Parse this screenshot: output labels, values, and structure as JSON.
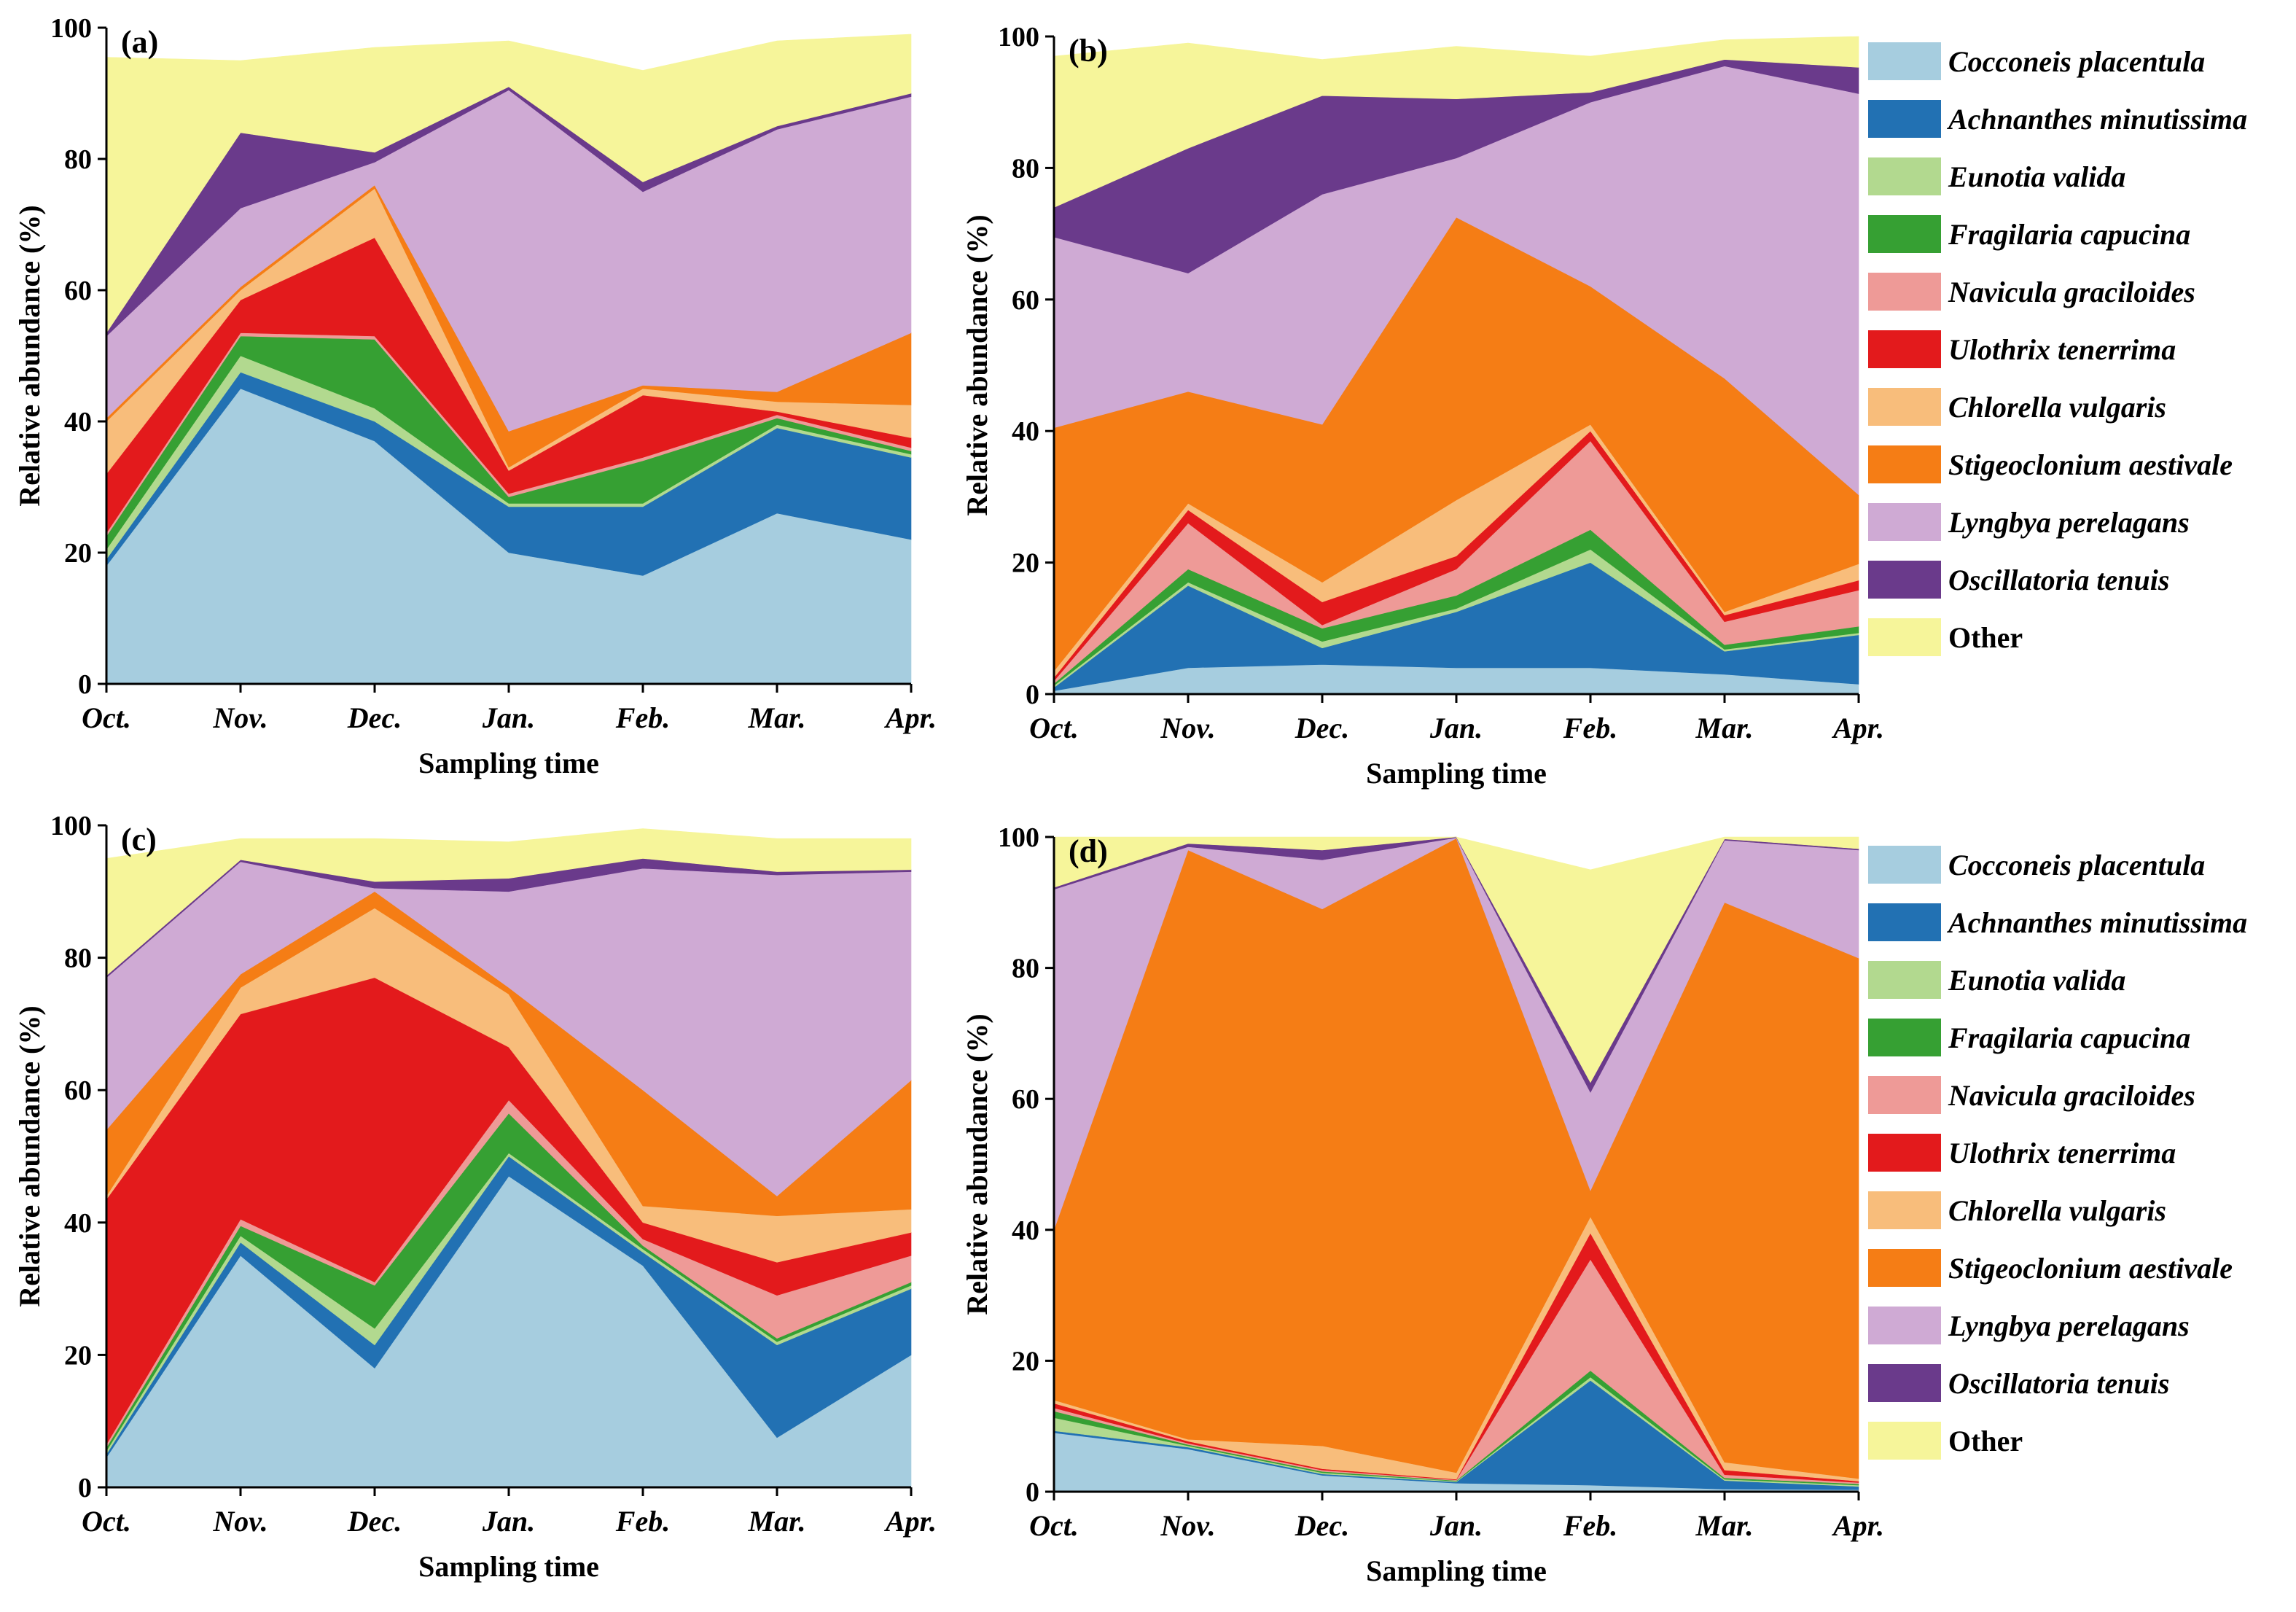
{
  "figure": {
    "background": "#ffffff"
  },
  "chart_data": [
    {
      "type": "area",
      "stacked": true,
      "panel_label": "(a)",
      "xlabel": "Sampling time",
      "ylabel": "Relative abundance (%)",
      "ylim": [
        0,
        100
      ],
      "yticks": [
        0,
        20,
        40,
        60,
        80,
        100
      ],
      "categories": [
        "Oct.",
        "Nov.",
        "Dec.",
        "Jan.",
        "Feb.",
        "Mar.",
        "Apr."
      ],
      "legend": false,
      "series": [
        {
          "name": "Cocconeis placentula",
          "color": "#a6cddf",
          "values": [
            18,
            45,
            37,
            20,
            16.5,
            26,
            22
          ]
        },
        {
          "name": "Achnanthes minutissima",
          "color": "#2271b3",
          "values": [
            1,
            2.5,
            3,
            7,
            10.5,
            13,
            12.5
          ]
        },
        {
          "name": "Eunotia valida",
          "color": "#b2d98f",
          "values": [
            1.5,
            2.5,
            2,
            0.5,
            0.5,
            0.5,
            0.5
          ]
        },
        {
          "name": "Fragilaria capucina",
          "color": "#36a033",
          "values": [
            2,
            3,
            10.5,
            1,
            6.5,
            1,
            0.5
          ]
        },
        {
          "name": "Navicula graciloides",
          "color": "#ee9a97",
          "values": [
            0.5,
            0.5,
            0.5,
            0.5,
            0.5,
            0.5,
            0.5
          ]
        },
        {
          "name": "Ulothrix tenerrima",
          "color": "#e31a1c",
          "values": [
            9,
            5,
            15,
            3.5,
            9.5,
            0.5,
            1.5
          ]
        },
        {
          "name": "Chlorella vulgaris",
          "color": "#f8bd7b",
          "values": [
            8,
            1.5,
            7.5,
            0.5,
            1,
            1.5,
            5
          ]
        },
        {
          "name": "Stigeoclonium aestivale",
          "color": "#f57d15",
          "values": [
            0.5,
            0.5,
            0.5,
            5.5,
            0.5,
            1.5,
            11
          ]
        },
        {
          "name": "Lyngbya perelagans",
          "color": "#cfaad4",
          "values": [
            12.5,
            12,
            3.5,
            52,
            29.5,
            40,
            36
          ]
        },
        {
          "name": "Oscillatoria tenuis",
          "color": "#6a3a8b",
          "values": [
            0.5,
            11.5,
            1.5,
            0.5,
            1.5,
            0.5,
            0.5
          ]
        },
        {
          "name": "Other",
          "color": "#f6f59a",
          "values": [
            42,
            11,
            16,
            7,
            17,
            13,
            9
          ]
        }
      ]
    },
    {
      "type": "area",
      "stacked": true,
      "panel_label": "(b)",
      "xlabel": "Sampling time",
      "ylabel": "Relative abundance (%)",
      "ylim": [
        0,
        100
      ],
      "yticks": [
        0,
        20,
        40,
        60,
        80,
        100
      ],
      "categories": [
        "Oct.",
        "Nov.",
        "Dec.",
        "Jan.",
        "Feb.",
        "Mar.",
        "Apr."
      ],
      "legend": true,
      "series": [
        {
          "name": "Cocconeis placentula",
          "color": "#a6cddf",
          "values": [
            0.5,
            4,
            4.5,
            4,
            4,
            3,
            1.5
          ]
        },
        {
          "name": "Achnanthes minutissima",
          "color": "#2271b3",
          "values": [
            0.5,
            12.5,
            2.5,
            8.5,
            16,
            3.5,
            7.5
          ]
        },
        {
          "name": "Eunotia valida",
          "color": "#b2d98f",
          "values": [
            0.3,
            0.5,
            1,
            0.5,
            2,
            0.3,
            0.3
          ]
        },
        {
          "name": "Fragilaria capucina",
          "color": "#36a033",
          "values": [
            0.3,
            2,
            2,
            2,
            3,
            0.7,
            1
          ]
        },
        {
          "name": "Navicula graciloides",
          "color": "#ee9a97",
          "values": [
            0.4,
            7,
            0.5,
            4,
            13.5,
            3.5,
            5.5
          ]
        },
        {
          "name": "Ulothrix tenerrima",
          "color": "#e31a1c",
          "values": [
            0.5,
            2,
            3.5,
            2,
            1.5,
            1,
            1.5
          ]
        },
        {
          "name": "Chlorella vulgaris",
          "color": "#f8bd7b",
          "values": [
            1,
            1,
            3,
            8.5,
            1,
            0.5,
            2.5
          ]
        },
        {
          "name": "Stigeoclonium aestivale",
          "color": "#f57d15",
          "values": [
            37,
            17,
            24,
            43,
            21,
            35.5,
            10.5
          ]
        },
        {
          "name": "Lyngbya perelagans",
          "color": "#cfaad4",
          "values": [
            29,
            18,
            35,
            9,
            28,
            47.5,
            61
          ]
        },
        {
          "name": "Oscillatoria tenuis",
          "color": "#6a3a8b",
          "values": [
            4.5,
            19,
            15,
            9,
            1.5,
            1,
            4
          ]
        },
        {
          "name": "Other",
          "color": "#f6f59a",
          "values": [
            23,
            16,
            5.5,
            8,
            5.5,
            3,
            5
          ]
        }
      ]
    },
    {
      "type": "area",
      "stacked": true,
      "panel_label": "(c)",
      "xlabel": "Sampling time",
      "ylabel": "Relative abundance (%)",
      "ylim": [
        0,
        100
      ],
      "yticks": [
        0,
        20,
        40,
        60,
        80,
        100
      ],
      "categories": [
        "Oct.",
        "Nov.",
        "Dec.",
        "Jan.",
        "Feb.",
        "Mar.",
        "Apr."
      ],
      "legend": false,
      "series": [
        {
          "name": "Cocconeis placentula",
          "color": "#a6cddf",
          "values": [
            4.5,
            35,
            18,
            47,
            33.5,
            7.5,
            20
          ]
        },
        {
          "name": "Achnanthes minutissima",
          "color": "#2271b3",
          "values": [
            0.5,
            2,
            3.5,
            3,
            2,
            14,
            10
          ]
        },
        {
          "name": "Eunotia valida",
          "color": "#b2d98f",
          "values": [
            0.5,
            1,
            2.5,
            0.5,
            0.5,
            0.5,
            0.5
          ]
        },
        {
          "name": "Fragilaria capucina",
          "color": "#36a033",
          "values": [
            0.5,
            1.5,
            6.5,
            6,
            0.5,
            0.5,
            0.5
          ]
        },
        {
          "name": "Navicula graciloides",
          "color": "#ee9a97",
          "values": [
            0.5,
            1,
            0.5,
            2,
            1,
            6.5,
            4
          ]
        },
        {
          "name": "Ulothrix tenerrima",
          "color": "#e31a1c",
          "values": [
            37,
            31,
            46,
            8,
            2.5,
            5,
            3.5
          ]
        },
        {
          "name": "Chlorella vulgaris",
          "color": "#f8bd7b",
          "values": [
            0.5,
            4,
            10.5,
            8,
            2.5,
            7,
            3.5
          ]
        },
        {
          "name": "Stigeoclonium aestivale",
          "color": "#f57d15",
          "values": [
            10,
            2,
            2.5,
            1,
            17.5,
            3,
            19.5
          ]
        },
        {
          "name": "Lyngbya perelagans",
          "color": "#cfaad4",
          "values": [
            23,
            17,
            0.5,
            14.5,
            33.5,
            48.5,
            31.5
          ]
        },
        {
          "name": "Oscillatoria tenuis",
          "color": "#6a3a8b",
          "values": [
            0.3,
            0.3,
            1,
            2,
            1.5,
            0.5,
            0.3
          ]
        },
        {
          "name": "Other",
          "color": "#f6f59a",
          "values": [
            17.7,
            3.2,
            6.5,
            5.5,
            4.5,
            5,
            4.7
          ]
        }
      ]
    },
    {
      "type": "area",
      "stacked": true,
      "panel_label": "(d)",
      "xlabel": "Sampling time",
      "ylabel": "Relative abundance (%)",
      "ylim": [
        0,
        100
      ],
      "yticks": [
        0,
        20,
        40,
        60,
        80,
        100
      ],
      "categories": [
        "Oct.",
        "Nov.",
        "Dec.",
        "Jan.",
        "Feb.",
        "Mar.",
        "Apr."
      ],
      "legend": true,
      "series": [
        {
          "name": "Cocconeis placentula",
          "color": "#a6cddf",
          "values": [
            9,
            6.5,
            2.5,
            1.3,
            1,
            0.4,
            0.3
          ]
        },
        {
          "name": "Achnanthes minutissima",
          "color": "#2271b3",
          "values": [
            0.3,
            0.3,
            0.2,
            0.2,
            16,
            1.3,
            0.5
          ]
        },
        {
          "name": "Eunotia valida",
          "color": "#b2d98f",
          "values": [
            2,
            0.2,
            0.2,
            0.1,
            0.5,
            0.2,
            0.2
          ]
        },
        {
          "name": "Fragilaria capucina",
          "color": "#36a033",
          "values": [
            1,
            0.2,
            0.2,
            0.1,
            1,
            0.2,
            0.2
          ]
        },
        {
          "name": "Navicula graciloides",
          "color": "#ee9a97",
          "values": [
            0.5,
            0.2,
            0.2,
            0.1,
            17,
            0.5,
            0.2
          ]
        },
        {
          "name": "Ulothrix tenerrima",
          "color": "#e31a1c",
          "values": [
            0.7,
            0.3,
            0.2,
            0.1,
            4,
            0.7,
            0.2
          ]
        },
        {
          "name": "Chlorella vulgaris",
          "color": "#f8bd7b",
          "values": [
            0.5,
            0.3,
            3.5,
            1,
            2.5,
            1.2,
            0.4
          ]
        },
        {
          "name": "Stigeoclonium aestivale",
          "color": "#f57d15",
          "values": [
            26,
            90,
            82,
            96.9,
            4,
            85.5,
            79.5
          ]
        },
        {
          "name": "Lyngbya perelagans",
          "color": "#cfaad4",
          "values": [
            52,
            0.5,
            7.5,
            0.1,
            15,
            9.5,
            16.5
          ]
        },
        {
          "name": "Oscillatoria tenuis",
          "color": "#6a3a8b",
          "values": [
            0.3,
            0.5,
            1.5,
            0.1,
            1.5,
            0.2,
            0.2
          ]
        },
        {
          "name": "Other",
          "color": "#f6f59a",
          "values": [
            7.7,
            1,
            2,
            0,
            32.5,
            0.3,
            1.8
          ]
        }
      ]
    }
  ]
}
